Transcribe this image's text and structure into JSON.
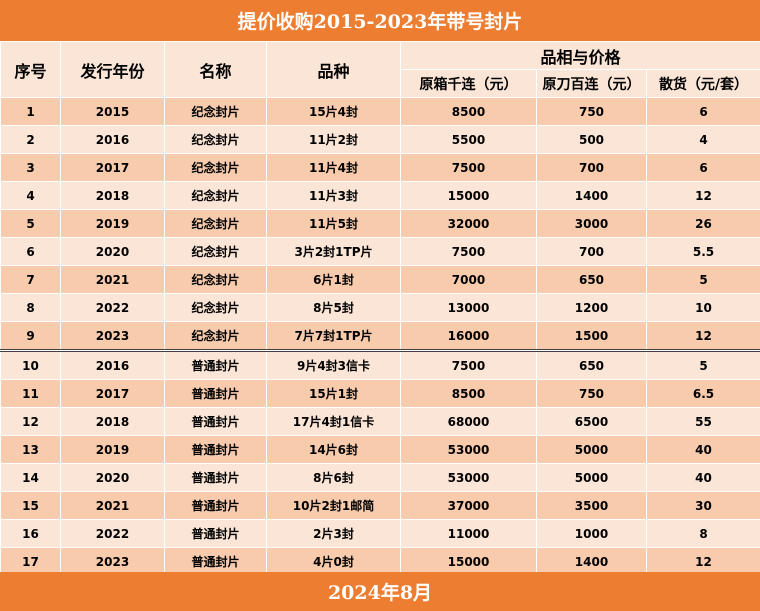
{
  "title": "提价收购2015-2023年带号封片",
  "footer": "2024年8月",
  "colors": {
    "banner": "#ed7d31",
    "header_bg": "#fbe5d6",
    "row_dark": "#f8cbad",
    "row_light": "#fbe5d6"
  },
  "headers": {
    "index": "序号",
    "year": "发行年份",
    "name": "名称",
    "variety": "品种",
    "quality_group": "品相与价格",
    "box": "原箱千连（元）",
    "knife": "原刀百连（元）",
    "loose": "散货（元/套）"
  },
  "rows": [
    {
      "index": "1",
      "year": "2015",
      "name": "纪念封片",
      "variety": "15片4封",
      "box": "8500",
      "knife": "750",
      "loose": "6"
    },
    {
      "index": "2",
      "year": "2016",
      "name": "纪念封片",
      "variety": "11片2封",
      "box": "5500",
      "knife": "500",
      "loose": "4"
    },
    {
      "index": "3",
      "year": "2017",
      "name": "纪念封片",
      "variety": "11片4封",
      "box": "7500",
      "knife": "700",
      "loose": "6"
    },
    {
      "index": "4",
      "year": "2018",
      "name": "纪念封片",
      "variety": "11片3封",
      "box": "15000",
      "knife": "1400",
      "loose": "12"
    },
    {
      "index": "5",
      "year": "2019",
      "name": "纪念封片",
      "variety": "11片5封",
      "box": "32000",
      "knife": "3000",
      "loose": "26"
    },
    {
      "index": "6",
      "year": "2020",
      "name": "纪念封片",
      "variety": "3片2封1TP片",
      "box": "7500",
      "knife": "700",
      "loose": "5.5"
    },
    {
      "index": "7",
      "year": "2021",
      "name": "纪念封片",
      "variety": "6片1封",
      "box": "7000",
      "knife": "650",
      "loose": "5"
    },
    {
      "index": "8",
      "year": "2022",
      "name": "纪念封片",
      "variety": "8片5封",
      "box": "13000",
      "knife": "1200",
      "loose": "10"
    },
    {
      "index": "9",
      "year": "2023",
      "name": "纪念封片",
      "variety": "7片7封1TP片",
      "box": "16000",
      "knife": "1500",
      "loose": "12"
    },
    {
      "index": "10",
      "year": "2016",
      "name": "普通封片",
      "variety": "9片4封3信卡",
      "box": "7500",
      "knife": "650",
      "loose": "5"
    },
    {
      "index": "11",
      "year": "2017",
      "name": "普通封片",
      "variety": "15片1封",
      "box": "8500",
      "knife": "750",
      "loose": "6.5"
    },
    {
      "index": "12",
      "year": "2018",
      "name": "普通封片",
      "variety": "17片4封1信卡",
      "box": "68000",
      "knife": "6500",
      "loose": "55"
    },
    {
      "index": "13",
      "year": "2019",
      "name": "普通封片",
      "variety": "14片6封",
      "box": "53000",
      "knife": "5000",
      "loose": "40"
    },
    {
      "index": "14",
      "year": "2020",
      "name": "普通封片",
      "variety": "8片6封",
      "box": "53000",
      "knife": "5000",
      "loose": "40"
    },
    {
      "index": "15",
      "year": "2021",
      "name": "普通封片",
      "variety": "10片2封1邮简",
      "box": "37000",
      "knife": "3500",
      "loose": "30"
    },
    {
      "index": "16",
      "year": "2022",
      "name": "普通封片",
      "variety": "2片3封",
      "box": "11000",
      "knife": "1000",
      "loose": "8"
    },
    {
      "index": "17",
      "year": "2023",
      "name": "普通封片",
      "variety": "4片0封",
      "box": "15000",
      "knife": "1400",
      "loose": "12"
    }
  ]
}
